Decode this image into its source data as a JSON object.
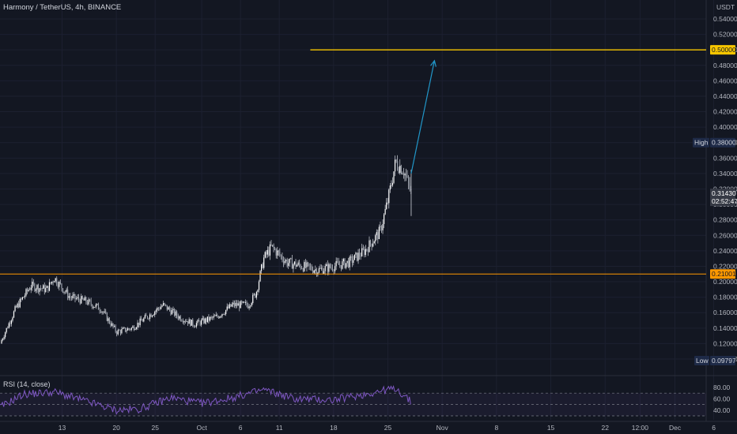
{
  "header": {
    "symbol": "Harmony / TetherUS",
    "interval": "4h",
    "exchange": "BINANCE",
    "currency": "USDT"
  },
  "rsi": {
    "title": "RSI (14, close)",
    "levels": [
      80,
      60,
      40
    ],
    "upper_band": 70,
    "lower_band": 30,
    "labels": [
      "80.00",
      "60.00",
      "40.00"
    ]
  },
  "badges": {
    "high_label": "High",
    "high_value": "0.38000",
    "low_label": "Low",
    "low_value": "0.09797",
    "last_price": "0.31430",
    "countdown": "02:52:47",
    "target_line": "0.50000",
    "support_line": "0.21001"
  },
  "colors": {
    "background": "#131722",
    "grid": "#1c2030",
    "axis_text": "#b2b5be",
    "candle": "#d1d4dc",
    "target_line": "#f7c600",
    "support_line": "#ff9800",
    "arrow": "#2196c8",
    "rsi_line": "#7e57c2",
    "rsi_band": "#7e57c2",
    "high_low_badge": "#1e2a47"
  },
  "chart_data": {
    "type": "candlestick",
    "title": "Harmony / TetherUS, 4h, BINANCE",
    "ylabel": "USDT",
    "ylim": [
      0.09,
      0.556
    ],
    "yticks": [
      0.54,
      0.52,
      0.5,
      0.48,
      0.46,
      0.44,
      0.42,
      0.4,
      0.38,
      0.36,
      0.34,
      0.32,
      0.3,
      0.28,
      0.26,
      0.24,
      0.22,
      0.2,
      0.18,
      0.16,
      0.14,
      0.12,
      0.1
    ],
    "ytick_labels": [
      "0.54000",
      "0.52000",
      "0.50000",
      "0.48000",
      "0.46000",
      "0.44000",
      "0.42000",
      "0.40000",
      "0.38000",
      "0.36000",
      "0.34000",
      "0.32000",
      "0.30000",
      "0.28000",
      "0.26000",
      "0.24000",
      "0.22000",
      "0.20000",
      "0.18000",
      "0.16000",
      "0.14000",
      "0.12000",
      "0.10000"
    ],
    "xlim_days": [
      "2021-09-05",
      "2021-12-09"
    ],
    "xticks": [
      {
        "date": "2021-09-13",
        "label": "13"
      },
      {
        "date": "2021-09-20",
        "label": "20"
      },
      {
        "date": "2021-09-25",
        "label": "25"
      },
      {
        "date": "2021-10-01",
        "label": "Oct"
      },
      {
        "date": "2021-10-06",
        "label": "6"
      },
      {
        "date": "2021-10-11",
        "label": "11"
      },
      {
        "date": "2021-10-18",
        "label": "18"
      },
      {
        "date": "2021-10-25",
        "label": "25"
      },
      {
        "date": "2021-11-01",
        "label": "Nov"
      },
      {
        "date": "2021-11-08",
        "label": "8"
      },
      {
        "date": "2021-11-15",
        "label": "15"
      },
      {
        "date": "2021-11-22",
        "label": "22"
      },
      {
        "date": "2021-11-26T12:00",
        "label": "12:00"
      },
      {
        "date": "2021-12-01",
        "label": "Dec"
      },
      {
        "date": "2021-12-06",
        "label": "6"
      }
    ],
    "price_path": [
      {
        "date": "2021-09-05",
        "close": 0.12
      },
      {
        "date": "2021-09-07",
        "close": 0.165
      },
      {
        "date": "2021-09-09",
        "close": 0.195
      },
      {
        "date": "2021-09-11",
        "close": 0.19
      },
      {
        "date": "2021-09-12",
        "close": 0.205
      },
      {
        "date": "2021-09-14",
        "close": 0.18
      },
      {
        "date": "2021-09-16",
        "close": 0.175
      },
      {
        "date": "2021-09-18",
        "close": 0.165
      },
      {
        "date": "2021-09-20",
        "close": 0.135
      },
      {
        "date": "2021-09-22",
        "close": 0.14
      },
      {
        "date": "2021-09-24",
        "close": 0.155
      },
      {
        "date": "2021-09-26",
        "close": 0.17
      },
      {
        "date": "2021-09-28",
        "close": 0.155
      },
      {
        "date": "2021-09-30",
        "close": 0.145
      },
      {
        "date": "2021-10-03",
        "close": 0.155
      },
      {
        "date": "2021-10-05",
        "close": 0.17
      },
      {
        "date": "2021-10-07",
        "close": 0.17
      },
      {
        "date": "2021-10-08",
        "close": 0.185
      },
      {
        "date": "2021-10-09",
        "close": 0.23
      },
      {
        "date": "2021-10-10",
        "close": 0.245
      },
      {
        "date": "2021-10-12",
        "close": 0.225
      },
      {
        "date": "2021-10-14",
        "close": 0.22
      },
      {
        "date": "2021-10-16",
        "close": 0.215
      },
      {
        "date": "2021-10-18",
        "close": 0.22
      },
      {
        "date": "2021-10-20",
        "close": 0.225
      },
      {
        "date": "2021-10-22",
        "close": 0.24
      },
      {
        "date": "2021-10-24",
        "close": 0.265
      },
      {
        "date": "2021-10-25",
        "close": 0.305
      },
      {
        "date": "2021-10-26",
        "close": 0.355
      },
      {
        "date": "2021-10-27",
        "close": 0.345
      },
      {
        "date": "2021-10-28",
        "close": 0.3143
      }
    ],
    "high": 0.38,
    "low": 0.09797,
    "last_price": 0.3143,
    "horizontal_lines": [
      {
        "value": 0.5,
        "start": "2021-10-15",
        "color": "#f7c600"
      },
      {
        "value": 0.21001,
        "start": "2021-09-05",
        "color": "#ff9800"
      }
    ],
    "projection_arrow": {
      "from": {
        "date": "2021-10-28",
        "value": 0.34
      },
      "to": {
        "date": "2021-10-31",
        "value": 0.486
      }
    },
    "rsi_path": [
      {
        "date": "2021-09-05",
        "value": 45
      },
      {
        "date": "2021-09-08",
        "value": 68
      },
      {
        "date": "2021-09-12",
        "value": 72
      },
      {
        "date": "2021-09-16",
        "value": 56
      },
      {
        "date": "2021-09-20",
        "value": 40
      },
      {
        "date": "2021-09-23",
        "value": 42
      },
      {
        "date": "2021-09-27",
        "value": 62
      },
      {
        "date": "2021-10-01",
        "value": 52
      },
      {
        "date": "2021-10-05",
        "value": 62
      },
      {
        "date": "2021-10-09",
        "value": 76
      },
      {
        "date": "2021-10-13",
        "value": 60
      },
      {
        "date": "2021-10-18",
        "value": 58
      },
      {
        "date": "2021-10-22",
        "value": 68
      },
      {
        "date": "2021-10-26",
        "value": 79
      },
      {
        "date": "2021-10-28",
        "value": 54
      }
    ]
  }
}
